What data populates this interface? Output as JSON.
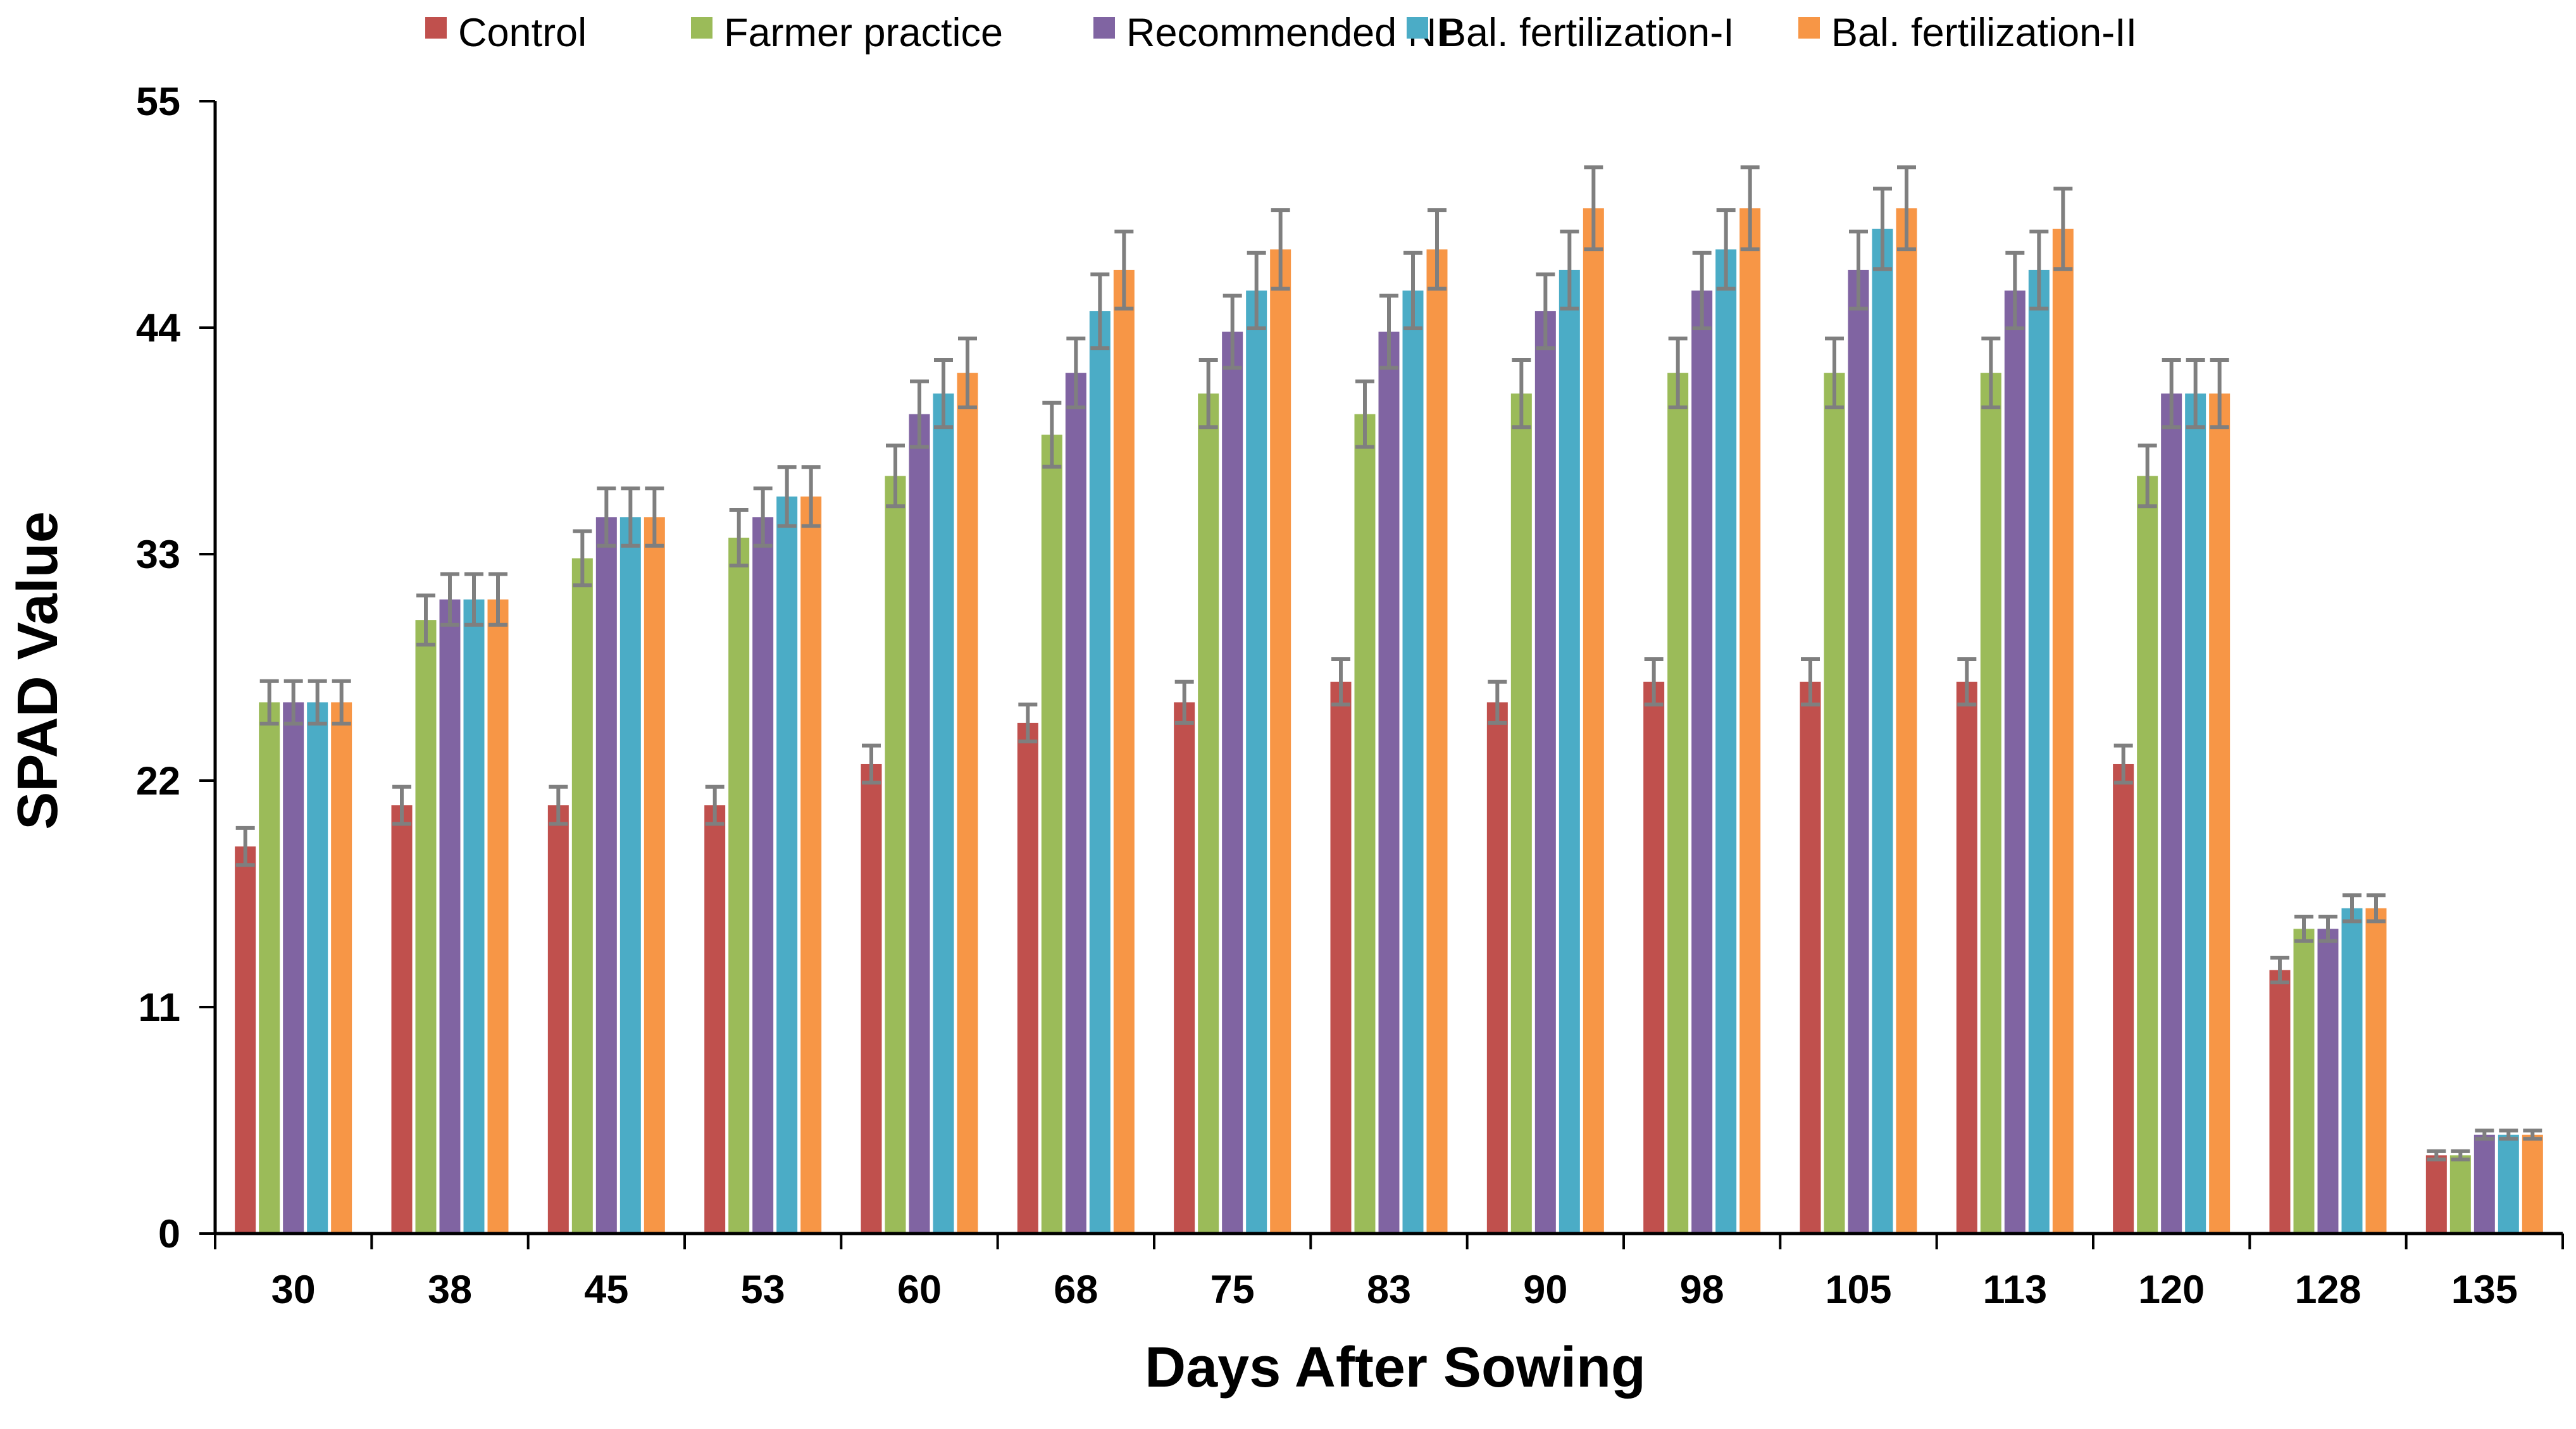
{
  "chart_data": {
    "type": "bar",
    "title": "",
    "xlabel": "Days After Sowing",
    "ylabel": "SPAD Value",
    "ylim": [
      0,
      55
    ],
    "yticks": [
      0,
      11,
      22,
      33,
      44,
      55
    ],
    "grid": false,
    "legend_position": "top",
    "error_bars": true,
    "categories": [
      "30",
      "38",
      "45",
      "53",
      "60",
      "68",
      "75",
      "83",
      "90",
      "98",
      "105",
      "113",
      "120",
      "128",
      "135"
    ],
    "series": [
      {
        "name": "Control",
        "color": "#c0504d",
        "values": [
          18.8,
          20.8,
          20.8,
          20.8,
          22.8,
          24.8,
          25.8,
          26.8,
          25.8,
          26.8,
          26.8,
          26.8,
          22.8,
          12.8,
          3.8
        ],
        "errors": [
          0.9,
          0.9,
          0.9,
          0.9,
          0.9,
          0.9,
          1.0,
          1.1,
          1.0,
          1.1,
          1.1,
          1.1,
          0.9,
          0.6,
          0.2
        ]
      },
      {
        "name": "Farmer practice",
        "color": "#9bbb59",
        "values": [
          25.8,
          29.8,
          32.8,
          33.8,
          36.8,
          38.8,
          40.8,
          39.8,
          40.8,
          41.8,
          41.8,
          41.8,
          36.8,
          14.8,
          3.8
        ]
      },
      {
        "name": "Recommended NP",
        "color": "#8064a2",
        "values": [
          25.8,
          30.8,
          34.8,
          34.8,
          39.8,
          41.8,
          43.8,
          43.8,
          44.8,
          45.8,
          46.8,
          45.8,
          40.8,
          14.8,
          4.8
        ]
      },
      {
        "name": "Bal. fertilization-I",
        "color": "#4bacc6",
        "values": [
          25.8,
          30.8,
          34.8,
          35.8,
          40.8,
          44.8,
          45.8,
          45.8,
          46.8,
          47.8,
          48.8,
          46.8,
          40.8,
          15.8,
          4.8
        ]
      },
      {
        "name": "Bal. fertilization-II",
        "color": "#f79646",
        "values": [
          25.8,
          30.8,
          34.8,
          35.8,
          41.8,
          46.8,
          47.8,
          47.8,
          49.8,
          49.8,
          49.8,
          48.8,
          40.8,
          15.8,
          4.8
        ]
      }
    ]
  }
}
